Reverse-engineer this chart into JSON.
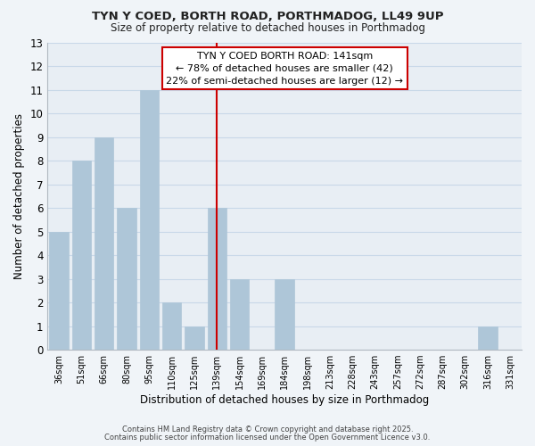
{
  "title": "TYN Y COED, BORTH ROAD, PORTHMADOG, LL49 9UP",
  "subtitle": "Size of property relative to detached houses in Porthmadog",
  "xlabel": "Distribution of detached houses by size in Porthmadog",
  "ylabel": "Number of detached properties",
  "bar_labels": [
    "36sqm",
    "51sqm",
    "66sqm",
    "80sqm",
    "95sqm",
    "110sqm",
    "125sqm",
    "139sqm",
    "154sqm",
    "169sqm",
    "184sqm",
    "198sqm",
    "213sqm",
    "228sqm",
    "243sqm",
    "257sqm",
    "272sqm",
    "287sqm",
    "302sqm",
    "316sqm",
    "331sqm"
  ],
  "bar_values": [
    5,
    8,
    9,
    6,
    11,
    2,
    1,
    6,
    3,
    0,
    3,
    0,
    0,
    0,
    0,
    0,
    0,
    0,
    0,
    1,
    0
  ],
  "bar_color": "#aec6d8",
  "bar_edge_color": "#aec6d8",
  "highlight_bar_index": 7,
  "highlight_line_color": "#cc0000",
  "ylim": [
    0,
    13
  ],
  "yticks": [
    0,
    1,
    2,
    3,
    4,
    5,
    6,
    7,
    8,
    9,
    10,
    11,
    12,
    13
  ],
  "annotation_text": "TYN Y COED BORTH ROAD: 141sqm\n← 78% of detached houses are smaller (42)\n22% of semi-detached houses are larger (12) →",
  "annotation_box_color": "#ffffff",
  "annotation_box_edge": "#cc0000",
  "footer_line1": "Contains HM Land Registry data © Crown copyright and database right 2025.",
  "footer_line2": "Contains public sector information licensed under the Open Government Licence v3.0.",
  "background_color": "#f0f4f8",
  "plot_bg_color": "#e8eef4",
  "grid_color": "#c8d8e8"
}
